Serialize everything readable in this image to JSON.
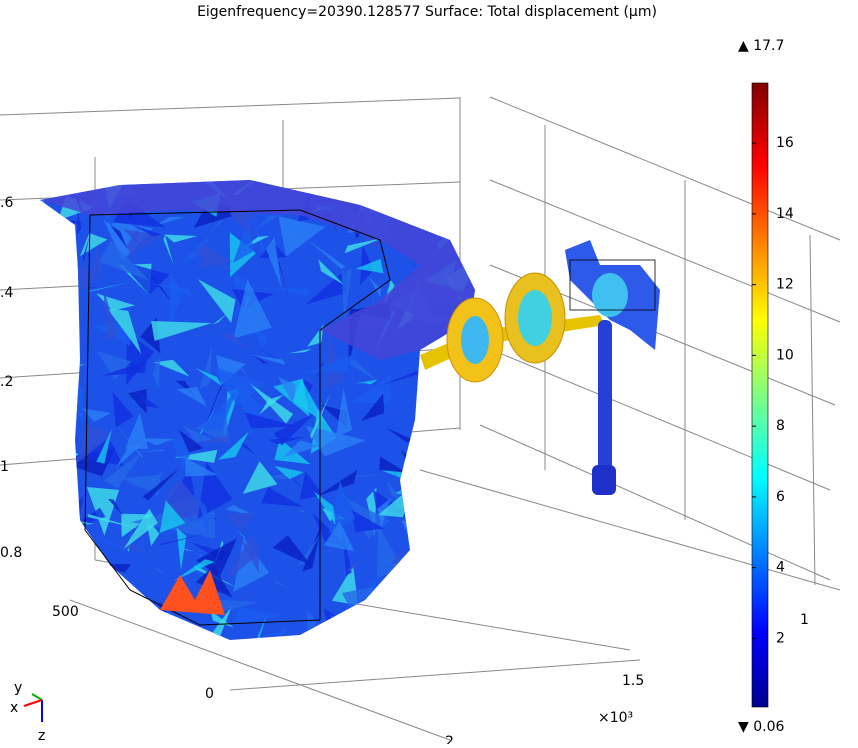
{
  "title": "Eigenfrequency=20390.128577   Surface: Total displacement (µm)",
  "colorbar": {
    "max": {
      "value": 17.7,
      "label": "▲ 17.7"
    },
    "min": {
      "value": 0.06,
      "label": "▼ 0.06"
    },
    "ticks": [
      2,
      4,
      6,
      8,
      10,
      12,
      14,
      16
    ]
  },
  "axis_labels": {
    "z1": ".6",
    "z2": ".4",
    "z3": ".2",
    "z4": "1",
    "z5": "0.8",
    "y1": "500",
    "y2": "0",
    "x1": "1.5",
    "x2": "2",
    "side": "1",
    "exponent": "×10³"
  },
  "triad": {
    "y": "y",
    "x": "x",
    "z": "z"
  }
}
